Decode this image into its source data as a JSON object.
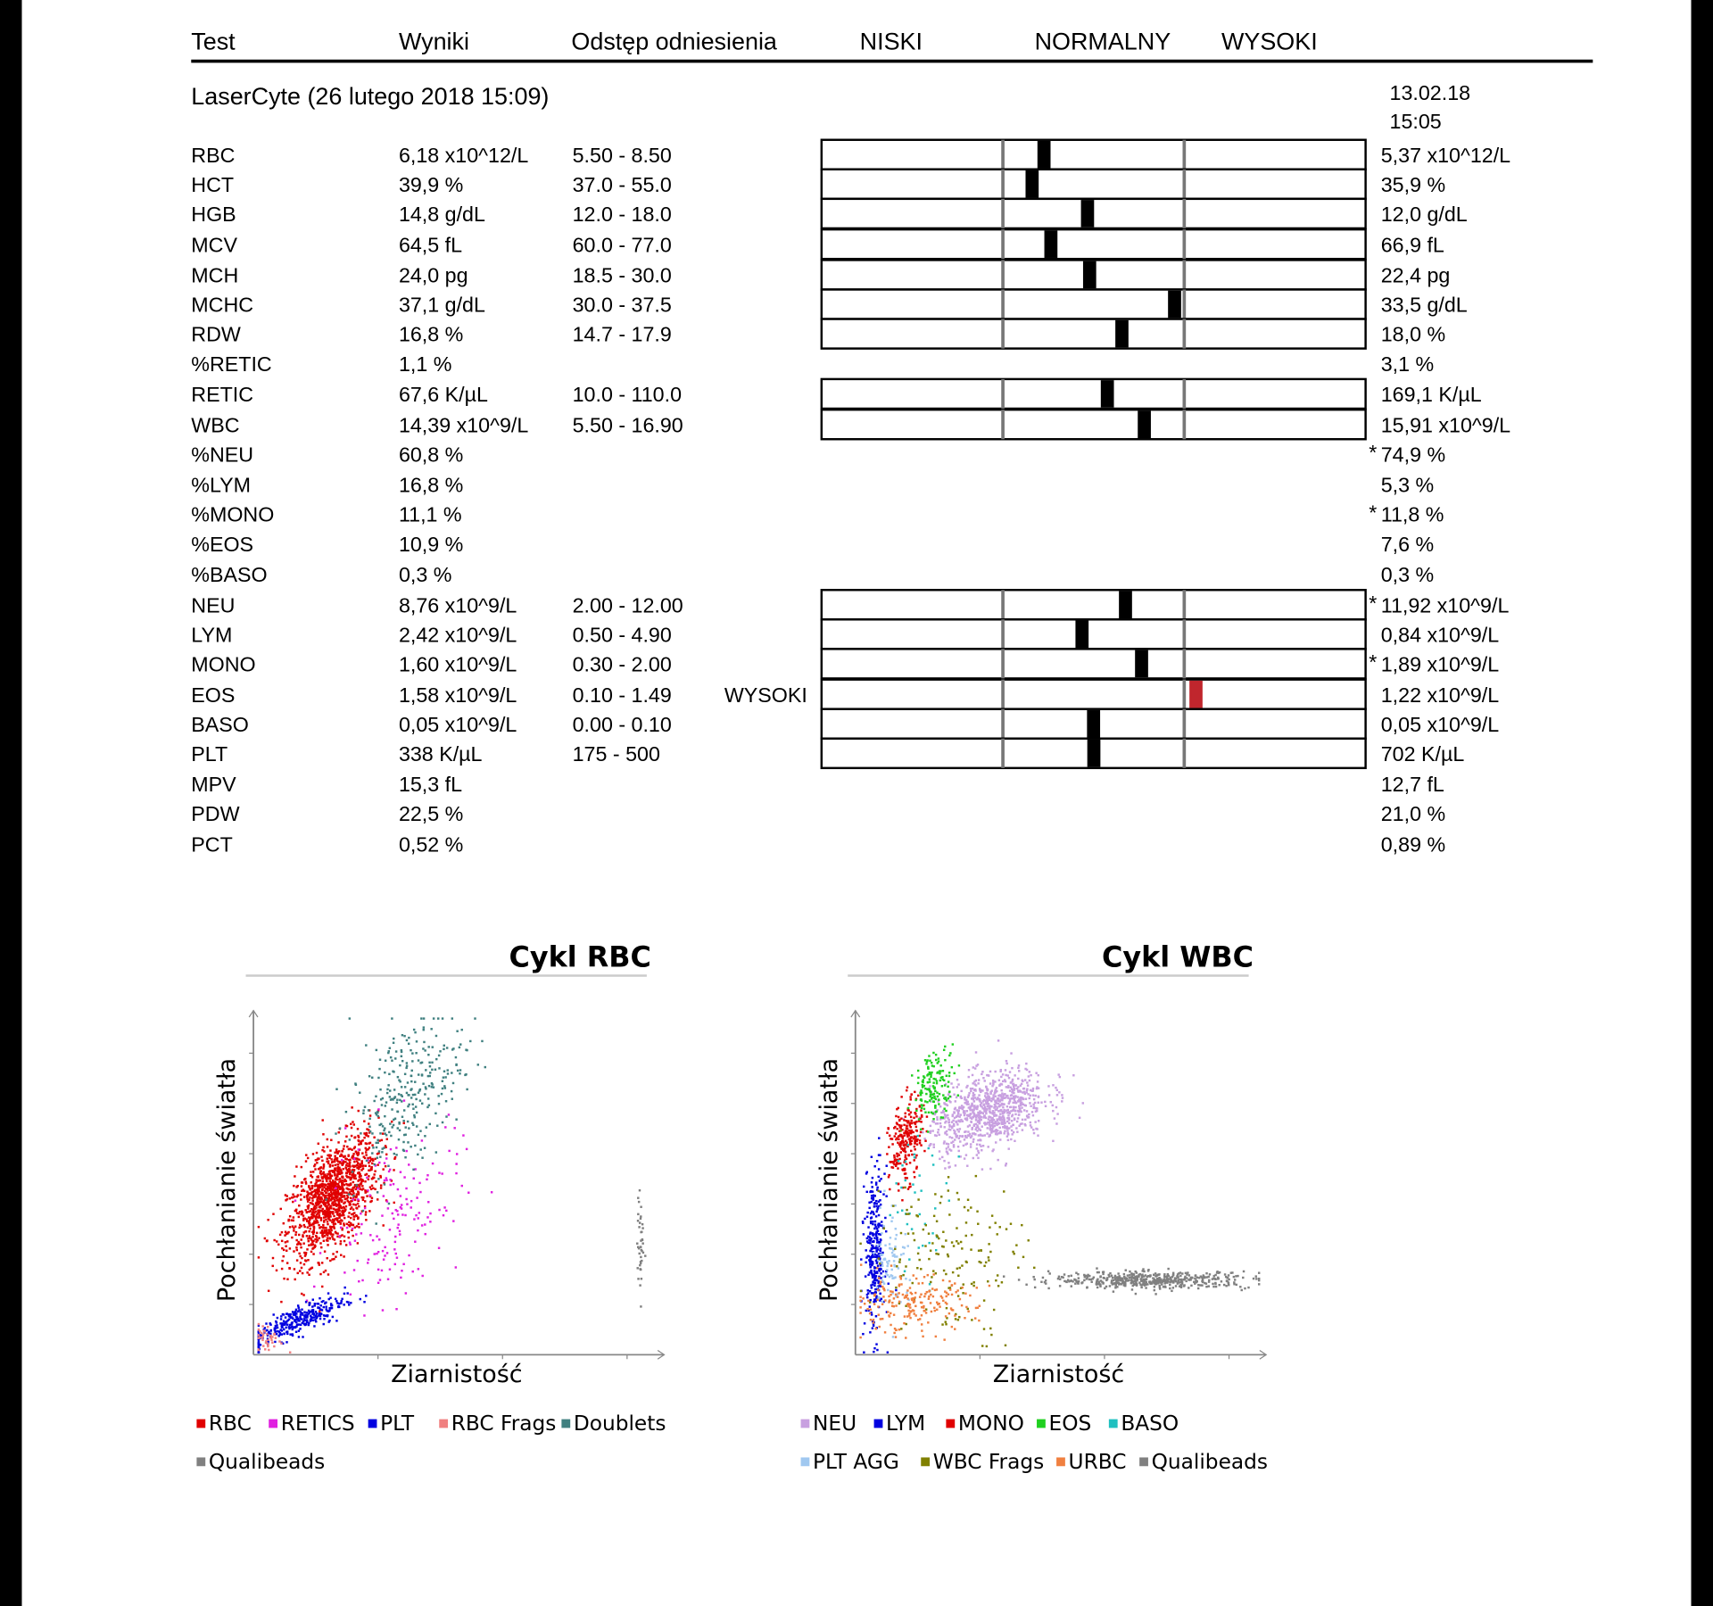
{
  "header": {
    "columns": [
      "Test",
      "Wyniki",
      "Odstęp odniesienia",
      "NISKI",
      "NORMALNY",
      "WYSOKI"
    ]
  },
  "sample": {
    "title": "LaserCyte (26 lutego 2018 15:09)",
    "previous_date": "13.02.18",
    "previous_time": "15:05"
  },
  "rows": [
    {
      "test": "RBC",
      "result": "6,18 x10^12/L",
      "range": "5.50 - 8.50",
      "previous": "5,37 x10^12/L",
      "previous_color": "#c0262d"
    },
    {
      "test": "HCT",
      "result": "39,9 %",
      "range": "37.0 - 55.0",
      "previous": "35,9 %",
      "previous_color": "#c0262d"
    },
    {
      "test": "HGB",
      "result": "14,8 g/dL",
      "range": "12.0 - 18.0",
      "previous": "12,0 g/dL"
    },
    {
      "test": "MCV",
      "result": "64,5 fL",
      "range": "60.0 - 77.0",
      "previous": "66,9 fL"
    },
    {
      "test": "MCH",
      "result": "24,0 pg",
      "range": "18.5 - 30.0",
      "previous": "22,4 pg"
    },
    {
      "test": "MCHC",
      "result": "37,1 g/dL",
      "range": "30.0 - 37.5",
      "previous": "33,5 g/dL"
    },
    {
      "test": "RDW",
      "result": "16,8 %",
      "range": "14.7 - 17.9",
      "previous": "18,0 %",
      "previous_color": "#c0262d"
    },
    {
      "test": "%RETIC",
      "result": "1,1 %",
      "previous": "3,1 %"
    },
    {
      "test": "RETIC",
      "result": "67,6 K/µL",
      "range": "10.0 - 110.0",
      "previous": "169,1 K/µL",
      "previous_color": "#c0262d"
    },
    {
      "test": "WBC",
      "result": "14,39 x10^9/L",
      "range": "5.50 - 16.90",
      "previous": "15,91 x10^9/L"
    },
    {
      "test": "%NEU",
      "result": "60,8 %",
      "note": "*",
      "previous": "74,9 %"
    },
    {
      "test": "%LYM",
      "result": "16,8 %",
      "previous": "5,3 %"
    },
    {
      "test": "%MONO",
      "result": "11,1 %",
      "note": "*",
      "previous": "11,8 %"
    },
    {
      "test": "%EOS",
      "result": "10,9 %",
      "previous": "7,6 %"
    },
    {
      "test": "%BASO",
      "result": "0,3 %",
      "previous": "0,3 %"
    },
    {
      "test": "NEU",
      "result": "8,76 x10^9/L",
      "range": "2.00 - 12.00",
      "note": "*",
      "previous": "11,92 x10^9/L"
    },
    {
      "test": "LYM",
      "result": "2,42 x10^9/L",
      "range": "0.50 - 4.90",
      "previous": "0,84 x10^9/L"
    },
    {
      "test": "MONO",
      "result": "1,60 x10^9/L",
      "range": "0.30 - 2.00",
      "note": "*",
      "previous": "1,89 x10^9/L"
    },
    {
      "test": "EOS",
      "result": "1,58 x10^9/L",
      "range": "0.10 - 1.49",
      "flag": "WYSOKI",
      "color": "#c0262d",
      "previous": "1,22 x10^9/L"
    },
    {
      "test": "BASO",
      "result": "0,05 x10^9/L",
      "range": "0.00 - 0.10",
      "previous": "0,05 x10^9/L"
    },
    {
      "test": "PLT",
      "result": "338 K/µL",
      "range": "175 - 500",
      "previous": "702 K/µL",
      "previous_color": "#c0262d"
    },
    {
      "test": "MPV",
      "result": "15,3 fL",
      "previous": "12,7 fL"
    },
    {
      "test": "PDW",
      "result": "22,5 %",
      "previous": "21,0 %"
    },
    {
      "test": "PCT",
      "result": "0,52 %",
      "previous": "0,89 %"
    }
  ],
  "plots": [
    {
      "title": "Cykl RBC",
      "y_label": "Pochłanianie światła",
      "x_label": "Ziarnistość",
      "legend": [
        {
          "name": "RBC",
          "color": "#e00000"
        },
        {
          "name": "RETICS",
          "color": "#e020e0"
        },
        {
          "name": "PLT",
          "color": "#0000e0"
        },
        {
          "name": "RBC Frags",
          "color": "#f08080"
        },
        {
          "name": "Doublets",
          "color": "#408080"
        },
        {
          "name": "Qualibeads",
          "color": "#808080"
        }
      ]
    },
    {
      "title": "Cykl WBC",
      "y_label": "Pochłanianie światła",
      "x_label": "Ziarnistość",
      "legend": [
        {
          "name": "NEU",
          "color": "#c8a0e0"
        },
        {
          "name": "LYM",
          "color": "#0000e0"
        },
        {
          "name": "MONO",
          "color": "#e00000"
        },
        {
          "name": "EOS",
          "color": "#20d020"
        },
        {
          "name": "BASO",
          "color": "#20c0c0"
        },
        {
          "name": "PLT AGG",
          "color": "#a0c8f0"
        },
        {
          "name": "WBC Frags",
          "color": "#808000"
        },
        {
          "name": "URBC",
          "color": "#f08040"
        },
        {
          "name": "Qualibeads",
          "color": "#808080"
        }
      ]
    }
  ]
}
